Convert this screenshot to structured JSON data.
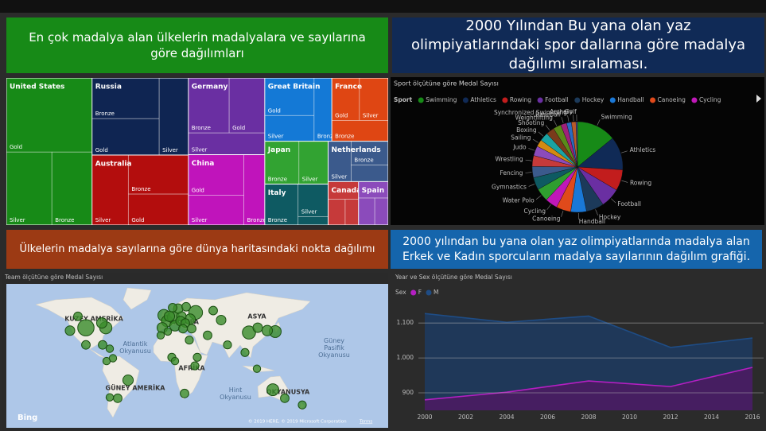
{
  "headers": [
    {
      "text": "En çok madalya alan ülkelerin madalyalara ve sayılarına göre dağılımları",
      "color": "#178a17"
    },
    {
      "text": "2000 Yılından Bu yana olan yaz olimpiyatlarındaki spor dallarına göre madalya dağılımı sıralaması.",
      "color": "#102a56"
    },
    {
      "text": "Ülkelerin madalya sayılarına göre dünya haritasındaki nokta dağılımı",
      "color": "#9c3a14"
    },
    {
      "text": "2000 yılından bu yana olan yaz olimpiyatlarında madalya alan Erkek ve Kadın sporcuların madalya sayılarının dağılım grafiği.",
      "color": "#1565ac"
    }
  ],
  "chart_data": [
    {
      "type": "treemap",
      "series": [
        {
          "name": "United States",
          "color": "#178a17",
          "categories": [
            "Gold",
            "Silver",
            "Bronze"
          ],
          "values": [
            650,
            340,
            300
          ]
        },
        {
          "name": "Russia",
          "color": "#0f2552",
          "categories": [
            "Bronze",
            "Gold",
            "Silver"
          ],
          "values": [
            280,
            250,
            230
          ]
        },
        {
          "name": "Australia",
          "color": "#b30d0d",
          "categories": [
            "Silver",
            "Bronze",
            "Gold"
          ],
          "values": [
            260,
            240,
            190
          ]
        },
        {
          "name": "Germany",
          "color": "#6a2fa2",
          "categories": [
            "Bronze",
            "Gold",
            "Silver"
          ],
          "values": [
            230,
            200,
            170
          ]
        },
        {
          "name": "China",
          "color": "#c014bb",
          "categories": [
            "Gold",
            "Silver",
            "Bronze"
          ],
          "values": [
            230,
            170,
            150
          ]
        },
        {
          "name": "Great Britain",
          "color": "#1479d6",
          "categories": [
            "Gold",
            "Silver",
            "Bronze"
          ],
          "values": [
            190,
            130,
            115
          ]
        },
        {
          "name": "France",
          "color": "#df4613",
          "categories": [
            "Gold",
            "Silver",
            "Bronze"
          ],
          "values": [
            120,
            125,
            120
          ]
        },
        {
          "name": "Japan",
          "color": "#32a332",
          "categories": [
            "Bronze",
            "Silver"
          ],
          "values": [
            150,
            128
          ]
        },
        {
          "name": "Italy",
          "color": "#0e5a62",
          "categories": [
            "Bronze",
            "Silver",
            null
          ],
          "values": [
            140,
            100,
            26
          ]
        },
        {
          "name": "Netherlands",
          "color": "#3b5a8c",
          "categories": [
            "Silver",
            "Bronze",
            null
          ],
          "values": [
            95,
            90,
            63
          ]
        },
        {
          "name": "Canada",
          "color": "#c63a3a",
          "categories": [
            null,
            null,
            null
          ],
          "values": [
            55,
            45,
            35
          ]
        },
        {
          "name": "Spain",
          "color": "#8b4bbb",
          "categories": [
            null,
            null,
            null
          ],
          "values": [
            50,
            45,
            37
          ]
        }
      ]
    },
    {
      "type": "pie",
      "title": "Sport ölçütüne göre Medal Sayısı",
      "legend_title": "Sport",
      "categories": [
        "Swimming",
        "Athletics",
        "Rowing",
        "Football",
        "Hockey",
        "Handball",
        "Canoeing",
        "Cycling",
        "Water Polo",
        "Gymnastics",
        "Fencing",
        "Wrestling",
        "Judo",
        "Sailing",
        "Boxing",
        "Shooting",
        "Weightlifting",
        "Baseball",
        "Synchronized Swimming",
        "Archery",
        "Golf"
      ],
      "values": [
        1050,
        890,
        560,
        520,
        470,
        420,
        390,
        330,
        350,
        330,
        300,
        290,
        260,
        190,
        230,
        220,
        210,
        160,
        130,
        120,
        40
      ],
      "colors": [
        "#178a17",
        "#102a56",
        "#c21d1d",
        "#6a2fa2",
        "#1c3a5a",
        "#1a78d6",
        "#e04a1b",
        "#c018b8",
        "#2f9e2f",
        "#0e5a62",
        "#3b5a8c",
        "#c63a3a",
        "#8b4bbb",
        "#d48a12",
        "#1aa3a3",
        "#7a3b1b",
        "#5a8a1a",
        "#a0207a",
        "#2a6ac0",
        "#b85a2a",
        "#4a4a9a"
      ]
    },
    {
      "type": "bubble_map",
      "title": "Team ölçütüne göre Medal Sayısı",
      "color": "#3a8c2a",
      "x": [
        -100,
        -75,
        -120,
        -80,
        -110,
        -100,
        -79,
        -70,
        -47,
        -60,
        -70,
        -74,
        -66,
        -2,
        2,
        10,
        12,
        -4,
        5,
        38,
        60,
        31,
        20,
        16,
        9,
        26,
        19,
        25,
        22,
        33,
        30,
        37,
        40,
        8,
        24,
        -6,
        53,
        70,
        78,
        105,
        116,
        138,
        128,
        100,
        115,
        135,
        150,
        172,
        12,
        3
      ],
      "y": [
        40,
        40,
        37,
        45,
        52,
        22,
        22,
        18,
        -15,
        -34,
        -33,
        5,
        8,
        53,
        47,
        51,
        42,
        40,
        52,
        56,
        58,
        49,
        52,
        60,
        61,
        62,
        47,
        45,
        39,
        39,
        27,
        0,
        9,
        9,
        -29,
        32,
        32,
        48,
        22,
        35,
        40,
        36,
        37,
        14,
        -3,
        -25,
        -34,
        -41,
        5,
        36
      ],
      "sizes": [
        30,
        15,
        8,
        10,
        6,
        6,
        6,
        4,
        10,
        6,
        4,
        4,
        4,
        14,
        12,
        14,
        10,
        10,
        10,
        20,
        6,
        10,
        8,
        8,
        6,
        6,
        8,
        6,
        6,
        6,
        5,
        5,
        5,
        5,
        6,
        4,
        6,
        8,
        5,
        18,
        8,
        14,
        10,
        5,
        4,
        14,
        6,
        5,
        4,
        4
      ],
      "xlim": [
        -200,
        280
      ],
      "ylim": [
        -65,
        86
      ],
      "continent_labels": [
        "KUZEY AMERİKA",
        "AVRUPA",
        "ASYA",
        "AFRİKA",
        "GÜNEY AMERİKA",
        "OKYANUSYA"
      ],
      "ocean_labels": [
        "Atlantik Okyanusu",
        "Hint Okyanusu",
        "Güney Pasifik Okyanusu"
      ],
      "logo": "Bing",
      "copyright": "© 2019 HERE, © 2019 Microsoft Corporation",
      "terms": "Terms"
    },
    {
      "type": "area",
      "title": "Year ve Sex ölçütüne göre Medal Sayısı",
      "legend_title": "Sex",
      "x": [
        2000,
        2004,
        2008,
        2012,
        2016
      ],
      "series": [
        {
          "name": "F",
          "color": "#b41fc2",
          "fill": "#4a1c62",
          "values": [
            880,
            902,
            934,
            918,
            973
          ]
        },
        {
          "name": "M",
          "color": "#1f4c84",
          "fill": "#1e3a5e",
          "values": [
            1127,
            1102,
            1120,
            1030,
            1057
          ]
        }
      ],
      "xlim": [
        2000,
        2016
      ],
      "xticks": [
        2000,
        2002,
        2004,
        2006,
        2008,
        2010,
        2012,
        2014,
        2016
      ],
      "ylim": [
        850,
        1130
      ],
      "yticks": [
        900,
        {
          "value": 1000,
          "label": "1.000"
        },
        {
          "value": 1100,
          "label": "1.100"
        }
      ],
      "grid": true
    }
  ]
}
